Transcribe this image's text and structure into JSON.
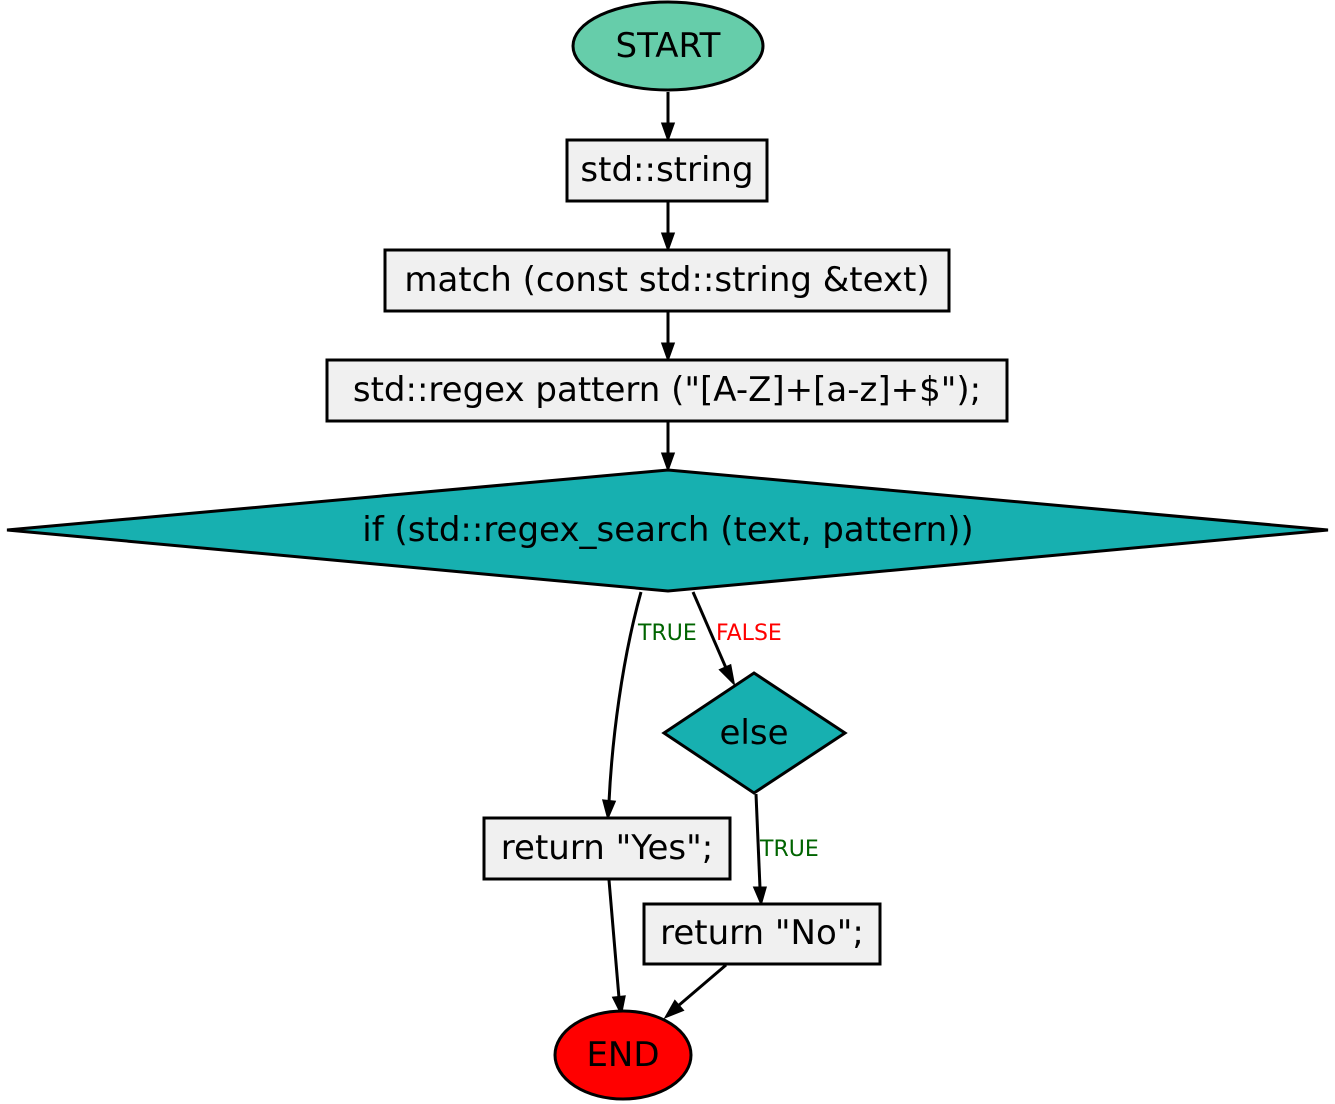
{
  "colors": {
    "start_fill": "#66cdaa",
    "end_fill": "#ff0000",
    "process_fill": "#f0f0f0",
    "decision_fill": "#17b0b0",
    "true_label": "#006400",
    "false_label": "#ff0000"
  },
  "nodes": {
    "start": "START",
    "decl_string": "std::string",
    "match_fn": "match (const std::string &text)",
    "pattern_decl": "std::regex pattern (\"[A-Z]+[a-z]+$\");",
    "if_cond": "if (std::regex_search (text, pattern))",
    "else_node": "else",
    "return_yes": "return \"Yes\";",
    "return_no": "return \"No\";",
    "end": "END"
  },
  "edges": {
    "if_true": "TRUE",
    "if_false": "FALSE",
    "else_true": "TRUE"
  }
}
